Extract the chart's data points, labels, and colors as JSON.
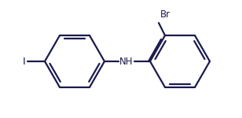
{
  "background_color": "#ffffff",
  "line_color": "#1a1a4e",
  "text_color": "#1a1a4e",
  "line_width": 1.6,
  "font_size": 8.5,
  "figsize": [
    3.08,
    1.5
  ],
  "dpi": 100,
  "I_label": "I",
  "Br_label": "Br",
  "NH_label": "NH"
}
